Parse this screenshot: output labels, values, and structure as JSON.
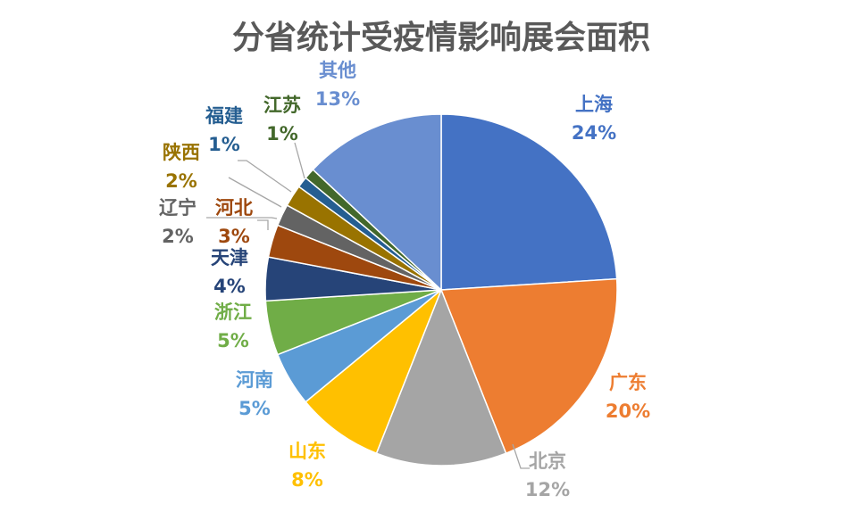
{
  "chart_data": {
    "type": "pie",
    "title": "分省统计受疫情影响展会面积",
    "slices": [
      {
        "name": "上海",
        "value": 24,
        "label": "24%",
        "color": "#4472C4"
      },
      {
        "name": "广东",
        "value": 20,
        "label": "20%",
        "color": "#ED7D31"
      },
      {
        "name": "北京",
        "value": 12,
        "label": "12%",
        "color": "#A5A5A5"
      },
      {
        "name": "山东",
        "value": 8,
        "label": "8%",
        "color": "#FFC000"
      },
      {
        "name": "河南",
        "value": 5,
        "label": "5%",
        "color": "#5B9BD5"
      },
      {
        "name": "浙江",
        "value": 5,
        "label": "5%",
        "color": "#70AD47"
      },
      {
        "name": "天津",
        "value": 4,
        "label": "4%",
        "color": "#264478"
      },
      {
        "name": "河北",
        "value": 3,
        "label": "3%",
        "color": "#9E480E"
      },
      {
        "name": "辽宁",
        "value": 2,
        "label": "2%",
        "color": "#636363"
      },
      {
        "name": "陕西",
        "value": 2,
        "label": "2%",
        "color": "#997300"
      },
      {
        "name": "福建",
        "value": 1,
        "label": "1%",
        "color": "#255E91"
      },
      {
        "name": "江苏",
        "value": 1,
        "label": "1%",
        "color": "#43682B"
      },
      {
        "name": "其他",
        "value": 13,
        "label": "13%",
        "color": "#698ED0"
      }
    ]
  }
}
